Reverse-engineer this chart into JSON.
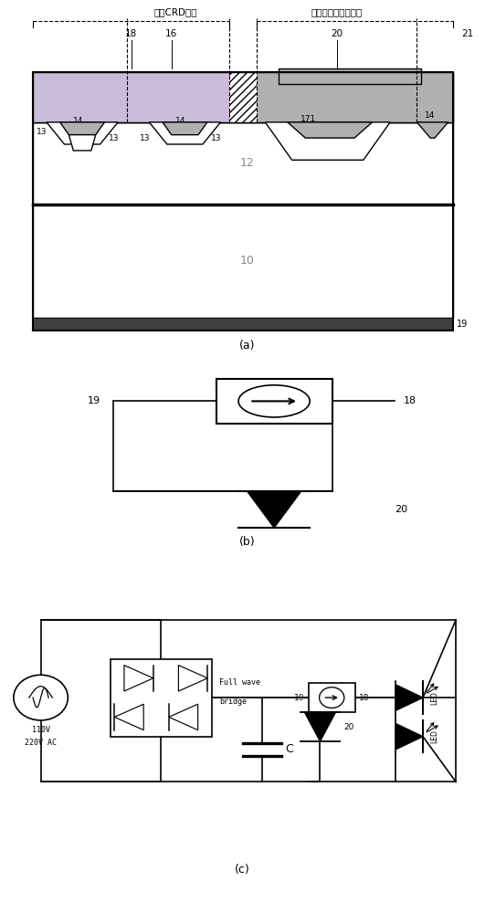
{
  "bg_color": "#ffffff",
  "line_color": "#000000",
  "gray_fill": "#b0b0b0",
  "light_purple": "#c8bcd8",
  "dark_gray": "#404040",
  "panel_a_label": "(a)",
  "panel_b_label": "(b)",
  "panel_c_label": "(c)",
  "chinese_label1": "单个CRD元胞",
  "chinese_label2": "瞬态电压抑制二极管",
  "label_21": "21"
}
